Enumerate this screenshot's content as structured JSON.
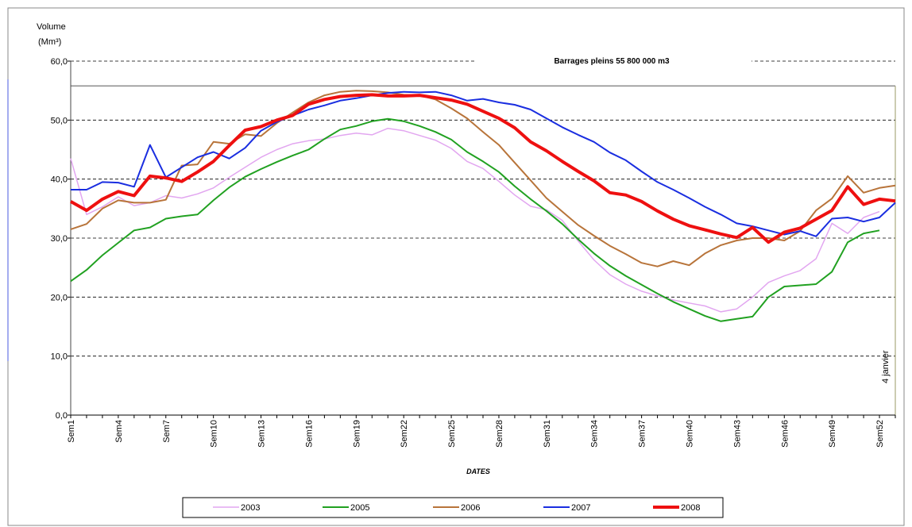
{
  "chart_data": {
    "type": "line",
    "y_label": [
      "Volume",
      "(Mm³)"
    ],
    "x_label": "DATES",
    "annotations": {
      "full_text": "Barrages pleins 55 800 000 m3",
      "full_level": 55.8,
      "end_text": "4 janvier"
    },
    "categories": [
      "Sem1",
      null,
      null,
      "Sem4",
      null,
      null,
      "Sem7",
      null,
      null,
      "Sem10",
      null,
      null,
      "Sem13",
      null,
      null,
      "Sem16",
      null,
      null,
      "Sem19",
      null,
      null,
      "Sem22",
      null,
      null,
      "Sem25",
      null,
      null,
      "Sem28",
      null,
      null,
      "Sem31",
      null,
      null,
      "Sem34",
      null,
      null,
      "Sem37",
      null,
      null,
      "Sem40",
      null,
      null,
      "Sem43",
      null,
      null,
      "Sem46",
      null,
      null,
      "Sem49",
      null,
      null,
      "Sem52",
      null
    ],
    "ylim": [
      0,
      60
    ],
    "yticks": [
      {
        "value": 0,
        "label": "0,0"
      },
      {
        "value": 10,
        "label": "10,0"
      },
      {
        "value": 20,
        "label": "20,0"
      },
      {
        "value": 30,
        "label": "30,0"
      },
      {
        "value": 40,
        "label": "40,0"
      },
      {
        "value": 50,
        "label": "50,0"
      },
      {
        "value": 60,
        "label": "60,0"
      }
    ],
    "grid": true,
    "series": [
      {
        "name": "2003",
        "color": "#e2a6f0",
        "width": 1.5,
        "values": [
          43.5,
          34,
          35.3,
          37,
          35.5,
          36,
          37.2,
          36.8,
          37.5,
          38.5,
          40.3,
          42,
          43.7,
          45,
          46,
          46.5,
          46.8,
          47.4,
          47.8,
          47.5,
          48.6,
          48.2,
          47.4,
          46.6,
          45.2,
          43,
          41.8,
          39.6,
          37.3,
          35.4,
          34.8,
          33,
          29.5,
          26.3,
          23.8,
          22.2,
          21,
          20.2,
          19.5,
          19,
          18.5,
          17.5,
          18,
          20,
          22.5,
          23.6,
          24.5,
          26.5,
          32.5,
          30.8,
          33.5,
          34.5,
          null
        ]
      },
      {
        "name": "2005",
        "color": "#21a121",
        "width": 2,
        "values": [
          22.7,
          24.6,
          27.1,
          29.2,
          31.3,
          31.8,
          33.3,
          33.7,
          34.0,
          36.4,
          38.6,
          40.4,
          41.7,
          42.9,
          44.0,
          45.0,
          46.8,
          48.4,
          49.0,
          49.8,
          50.2,
          49.8,
          49.0,
          48.0,
          46.7,
          44.6,
          43.0,
          41.2,
          38.8,
          36.6,
          34.6,
          32.4,
          29.8,
          27.4,
          25.3,
          23.6,
          22.1,
          20.6,
          19.2,
          18.0,
          16.8,
          15.9,
          16.3,
          16.7,
          20.0,
          21.8,
          22.0,
          22.2,
          24.3,
          29.3,
          30.8,
          31.3,
          null
        ]
      },
      {
        "name": "2006",
        "color": "#b8743a",
        "width": 2,
        "values": [
          31.5,
          32.4,
          35,
          36.4,
          36,
          36,
          36.5,
          42.3,
          42.5,
          46.3,
          46,
          47.6,
          47.3,
          49.5,
          51.3,
          53,
          54.2,
          54.8,
          55,
          54.9,
          54.7,
          54.3,
          54.2,
          53.5,
          52,
          50.3,
          48,
          45.8,
          42.8,
          39.8,
          36.8,
          34.5,
          32.2,
          30.4,
          28.7,
          27.3,
          25.8,
          25.2,
          26.1,
          25.4,
          27.4,
          28.8,
          29.6,
          30.0,
          30.0,
          29.6,
          31.2,
          34.7,
          36.7,
          40.5,
          37.7,
          38.5,
          38.9
        ]
      },
      {
        "name": "2007",
        "color": "#1a2ee0",
        "width": 2,
        "values": [
          38.2,
          38.2,
          39.5,
          39.4,
          38.7,
          45.8,
          40.3,
          42,
          43.7,
          44.6,
          43.5,
          45.3,
          48.2,
          49.7,
          50.8,
          51.8,
          52.5,
          53.3,
          53.7,
          54.2,
          54.6,
          54.8,
          54.7,
          54.8,
          54.2,
          53.3,
          53.6,
          53.0,
          52.6,
          51.8,
          50.3,
          48.8,
          47.5,
          46.3,
          44.5,
          43.2,
          41.3,
          39.5,
          38.2,
          36.8,
          35.3,
          34.0,
          32.5,
          32.0,
          31.3,
          30.6,
          31.2,
          30.3,
          33.3,
          33.5,
          32.8,
          33.5,
          36.0
        ]
      },
      {
        "name": "2008",
        "color": "#ee1010",
        "width": 4,
        "values": [
          36.2,
          34.7,
          36.6,
          37.9,
          37.2,
          40.5,
          40.2,
          39.6,
          41.2,
          43.0,
          45.7,
          48.3,
          48.9,
          50.0,
          50.8,
          52.7,
          53.5,
          54.0,
          54.2,
          54.3,
          54.1,
          54.1,
          54.2,
          53.8,
          53.4,
          52.7,
          51.5,
          50.3,
          48.7,
          46.3,
          44.8,
          43.0,
          41.3,
          39.7,
          37.7,
          37.3,
          36.2,
          34.6,
          33.2,
          32.1,
          31.4,
          30.7,
          30.1,
          31.8,
          29.3,
          31.0,
          31.7,
          33.2,
          34.7,
          38.7,
          35.7,
          36.6,
          36.3
        ]
      }
    ]
  }
}
